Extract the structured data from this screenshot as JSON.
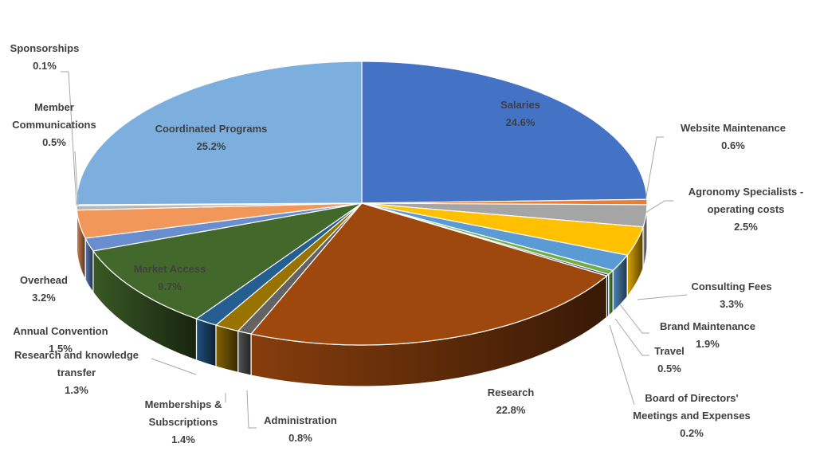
{
  "chart_data": {
    "type": "pie",
    "slices": [
      {
        "label": "Salaries",
        "value": 24.6,
        "value_text": "24.6%",
        "color": "#4472C4"
      },
      {
        "label": "Website Maintenance",
        "value": 0.6,
        "value_text": "0.6%",
        "color": "#ED7D31"
      },
      {
        "label": "Agronomy Specialists - operating costs",
        "value": 2.5,
        "value_text": "2.5%",
        "color": "#A5A5A5"
      },
      {
        "label": "Consulting Fees",
        "value": 3.3,
        "value_text": "3.3%",
        "color": "#FFC000"
      },
      {
        "label": "Brand Maintenance",
        "value": 1.9,
        "value_text": "1.9%",
        "color": "#5B9BD5"
      },
      {
        "label": "Travel",
        "value": 0.5,
        "value_text": "0.5%",
        "color": "#70AD47"
      },
      {
        "label": "Board of Directors' Meetings and Expenses",
        "value": 0.2,
        "value_text": "0.2%",
        "color": "#264478"
      },
      {
        "label": "Research",
        "value": 22.8,
        "value_text": "22.8%",
        "color": "#9E480E"
      },
      {
        "label": "Administration",
        "value": 0.8,
        "value_text": "0.8%",
        "color": "#636363"
      },
      {
        "label": "Memberships & Subscriptions",
        "value": 1.4,
        "value_text": "1.4%",
        "color": "#997300"
      },
      {
        "label": "Research and knowledge transfer",
        "value": 1.3,
        "value_text": "1.3%",
        "color": "#255E91"
      },
      {
        "label": "Market Access",
        "value": 9.7,
        "value_text": "9.7%",
        "color": "#43682B"
      },
      {
        "label": "Annual Convention",
        "value": 1.5,
        "value_text": "1.5%",
        "color": "#698ED0"
      },
      {
        "label": "Overhead",
        "value": 3.2,
        "value_text": "3.2%",
        "color": "#F1975A"
      },
      {
        "label": "Member Communications",
        "value": 0.5,
        "value_text": "0.5%",
        "color": "#B7B7B7"
      },
      {
        "label": "Sponsorships",
        "value": 0.1,
        "value_text": "0.1%",
        "color": "#FFCD33"
      },
      {
        "label": "Coordinated Programs",
        "value": 25.2,
        "value_text": "25.2%",
        "color": "#7CAFDD"
      }
    ],
    "start_angle_deg": 0,
    "direction": "clockwise",
    "style": "3d"
  }
}
